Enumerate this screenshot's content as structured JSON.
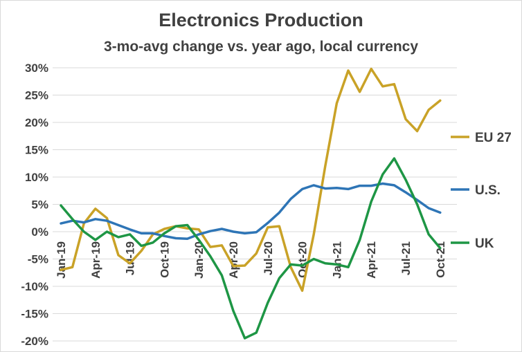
{
  "chart_data": {
    "type": "line",
    "title": "Electronics Production",
    "subtitle": "3-mo-avg change vs. year ago, local currency",
    "xlabel": "",
    "ylabel": "",
    "ylim": [
      -20,
      30
    ],
    "ytick_values": [
      30,
      25,
      20,
      15,
      10,
      5,
      0,
      -5,
      -10,
      -15,
      -20
    ],
    "ytick_labels": [
      "30%",
      "25%",
      "20%",
      "15%",
      "10%",
      "5%",
      "0%",
      "-5%",
      "-10%",
      "-15%",
      "-20%"
    ],
    "x": [
      "Jan-19",
      "Feb-19",
      "Mar-19",
      "Apr-19",
      "May-19",
      "Jun-19",
      "Jul-19",
      "Aug-19",
      "Sep-19",
      "Oct-19",
      "Nov-19",
      "Dec-19",
      "Jan-20",
      "Feb-20",
      "Mar-20",
      "Apr-20",
      "May-20",
      "Jun-20",
      "Jul-20",
      "Aug-20",
      "Sep-20",
      "Oct-20",
      "Nov-20",
      "Dec-20",
      "Jan-21",
      "Feb-21",
      "Mar-21",
      "Apr-21",
      "May-21",
      "Jun-21",
      "Jul-21",
      "Aug-21",
      "Sep-21",
      "Oct-21"
    ],
    "xtick_labels": [
      "Jan-19",
      "Apr-19",
      "Jul-19",
      "Oct-19",
      "Jan-20",
      "Apr-20",
      "Jul-20",
      "Oct-20",
      "Jan-21",
      "Apr-21",
      "Jul-21",
      "Oct-21"
    ],
    "grid": true,
    "legend": "inline labels at right end of each series",
    "series": [
      {
        "name": "EU 27",
        "color": "#c9a227",
        "values": [
          -7,
          -6.5,
          1.5,
          4.2,
          2.5,
          -4.3,
          -5.8,
          -3.5,
          -0.5,
          0.5,
          1,
          0.6,
          0.4,
          -2.8,
          -2.5,
          -6.3,
          -6.2,
          -4,
          0.8,
          1,
          -6.5,
          -10.8,
          -0.5,
          12,
          23.5,
          29.5,
          25.6,
          29.8,
          26.6,
          27,
          20.6,
          18.4,
          22.3,
          24
        ]
      },
      {
        "name": "U.S.",
        "color": "#2e75b6",
        "values": [
          1.5,
          2,
          1.7,
          2.3,
          2,
          1.2,
          0.4,
          -0.3,
          -0.3,
          -0.8,
          -1.2,
          -1.3,
          -0.5,
          0.1,
          0.5,
          0,
          -0.3,
          -0.1,
          1.6,
          3.5,
          6,
          7.8,
          8.5,
          7.9,
          8,
          7.8,
          8.4,
          8.4,
          8.8,
          8.5,
          7.2,
          5.8,
          4.3,
          3.5
        ]
      },
      {
        "name": "UK",
        "color": "#1e9645",
        "values": [
          4.8,
          2.3,
          0,
          -1.5,
          0,
          -1,
          -0.5,
          -2.6,
          -2,
          -0.3,
          1,
          1.2,
          -1.5,
          -4.5,
          -8,
          -14.5,
          -19.5,
          -18.5,
          -13,
          -8.5,
          -6,
          -6.2,
          -5,
          -5.8,
          -6,
          -6.5,
          -1.5,
          5.5,
          10.5,
          13.4,
          9.5,
          5,
          -0.5,
          -3
        ]
      }
    ]
  }
}
